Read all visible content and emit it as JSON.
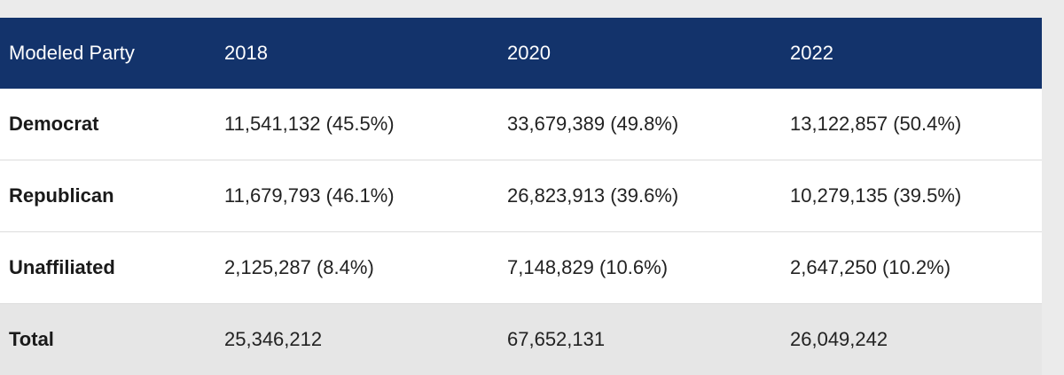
{
  "table": {
    "header": [
      "Modeled Party",
      "2018",
      "2020",
      "2022"
    ],
    "rows": [
      [
        "Democrat",
        "11,541,132 (45.5%)",
        "33,679,389 (49.8%)",
        "13,122,857 (50.4%)"
      ],
      [
        "Republican",
        "11,679,793 (46.1%)",
        "26,823,913 (39.6%)",
        "10,279,135 (39.5%)"
      ],
      [
        "Unaffiliated",
        "2,125,287 (8.4%)",
        "7,148,829 (10.6%)",
        "2,647,250 (10.2%)"
      ],
      [
        "Total",
        "25,346,212",
        "67,652,131",
        "26,049,242"
      ]
    ]
  }
}
